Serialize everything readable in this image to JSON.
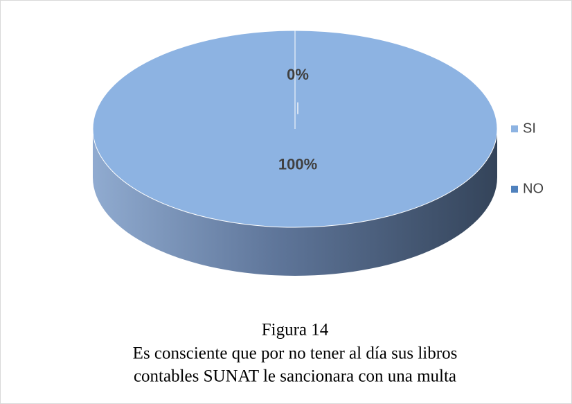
{
  "chart_data": {
    "type": "pie",
    "categories": [
      "SI",
      "NO"
    ],
    "values": [
      100,
      0
    ],
    "value_labels": [
      "100%",
      "0%"
    ],
    "colors": [
      "#8db3e2",
      "#4f81bd"
    ],
    "legend": "right",
    "caption_title": "Figura 14",
    "caption_lines": [
      "Es consciente que por no tener al día sus libros",
      "contables SUNAT le sancionara con una multa"
    ]
  }
}
